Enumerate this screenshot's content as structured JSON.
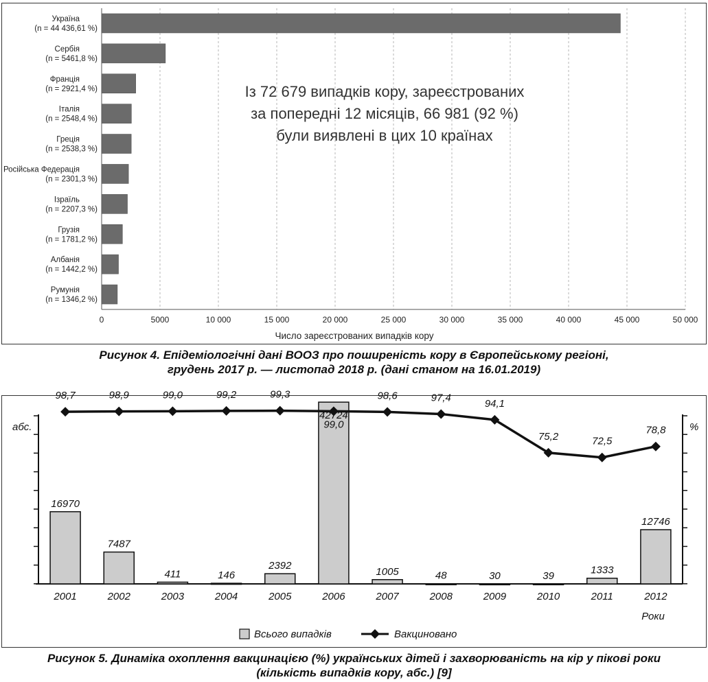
{
  "figure4": {
    "caption_line1": "Рисунок 4. Епідеміологічні дані ВООЗ про поширеність кору в Європейському регіоні,",
    "caption_line2": "грудень 2017 р. — листопад 2018 р. (дані станом на 16.01.2019)",
    "chart_data": {
      "type": "bar",
      "orientation": "horizontal",
      "categories": [
        "Україна",
        "Сербія",
        "Франція",
        "Італія",
        "Греція",
        "Російська Федерація",
        "Ізраїль",
        "Грузія",
        "Албанія",
        "Румунія"
      ],
      "sublabels": [
        "(n = 44 436,61 %)",
        "(n = 5461,8 %)",
        "(n = 2921,4 %)",
        "(n = 2548,4 %)",
        "(n = 2538,3 %)",
        "(n = 2301,3 %)",
        "(n = 2207,3 %)",
        "(n = 1781,2 %)",
        "(n = 1442,2 %)",
        "(n = 1346,2 %)"
      ],
      "values": [
        44436,
        5461,
        2921,
        2548,
        2538,
        2301,
        2207,
        1781,
        1442,
        1346
      ],
      "xlim": [
        0,
        50000
      ],
      "xticks": [
        0,
        5000,
        10000,
        15000,
        20000,
        25000,
        30000,
        35000,
        40000,
        45000,
        50000
      ],
      "xtick_labels": [
        "0",
        "5000",
        "10 000",
        "15 000",
        "20 000",
        "25 000",
        "30 000",
        "35 000",
        "40 000",
        "45 000",
        "50 000"
      ],
      "xlabel": "Число зареєстрованих випадків кору",
      "grid": "vertical-dashed",
      "bar_color": "#6b6b6b",
      "annotation_lines": [
        "Із 72 679 випадків кору, зареєстрованих",
        "за попередні 12 місяців, 66 981 (92 %)",
        "були виявлені в цих 10 країнах"
      ]
    }
  },
  "figure5": {
    "caption_line1": "Рисунок 5. Динаміка охоплення вакцинацією (%) українських дітей і захворюваність на кір у пікові роки",
    "caption_line2": "(кількість випадків кору, абс.) [9]",
    "chart_data": {
      "type": "bar+line",
      "categories": [
        "2001",
        "2002",
        "2003",
        "2004",
        "2005",
        "2006",
        "2007",
        "2008",
        "2009",
        "2010",
        "2011",
        "2012"
      ],
      "series": [
        {
          "name": "Всього випадків",
          "type": "bar",
          "values": [
            16970,
            7487,
            411,
            146,
            2392,
            42724,
            1005,
            48,
            30,
            39,
            1333,
            12746
          ],
          "labels": [
            "16970",
            "7487",
            "411",
            "146",
            "2392",
            "42724",
            "1005",
            "48",
            "30",
            "39",
            "1333",
            "12746"
          ],
          "color": "#cccccc"
        },
        {
          "name": "Вакциновано",
          "type": "line",
          "values": [
            98.7,
            98.9,
            99.0,
            99.2,
            99.3,
            99.0,
            98.6,
            97.4,
            94.1,
            75.2,
            72.5,
            78.8
          ],
          "labels": [
            "98,7",
            "98,9",
            "99,0",
            "99,2",
            "99,3",
            "99,0",
            "98,6",
            "97,4",
            "94,1",
            "75,2",
            "72,5",
            "78,8"
          ],
          "color": "#111111"
        }
      ],
      "y_left_label": "абс.",
      "y_right_label": "%",
      "xlabel": "Роки",
      "y_left_range": [
        0,
        45000
      ],
      "y_right_range": [
        0,
        120
      ],
      "legend_position": "bottom-center"
    }
  }
}
